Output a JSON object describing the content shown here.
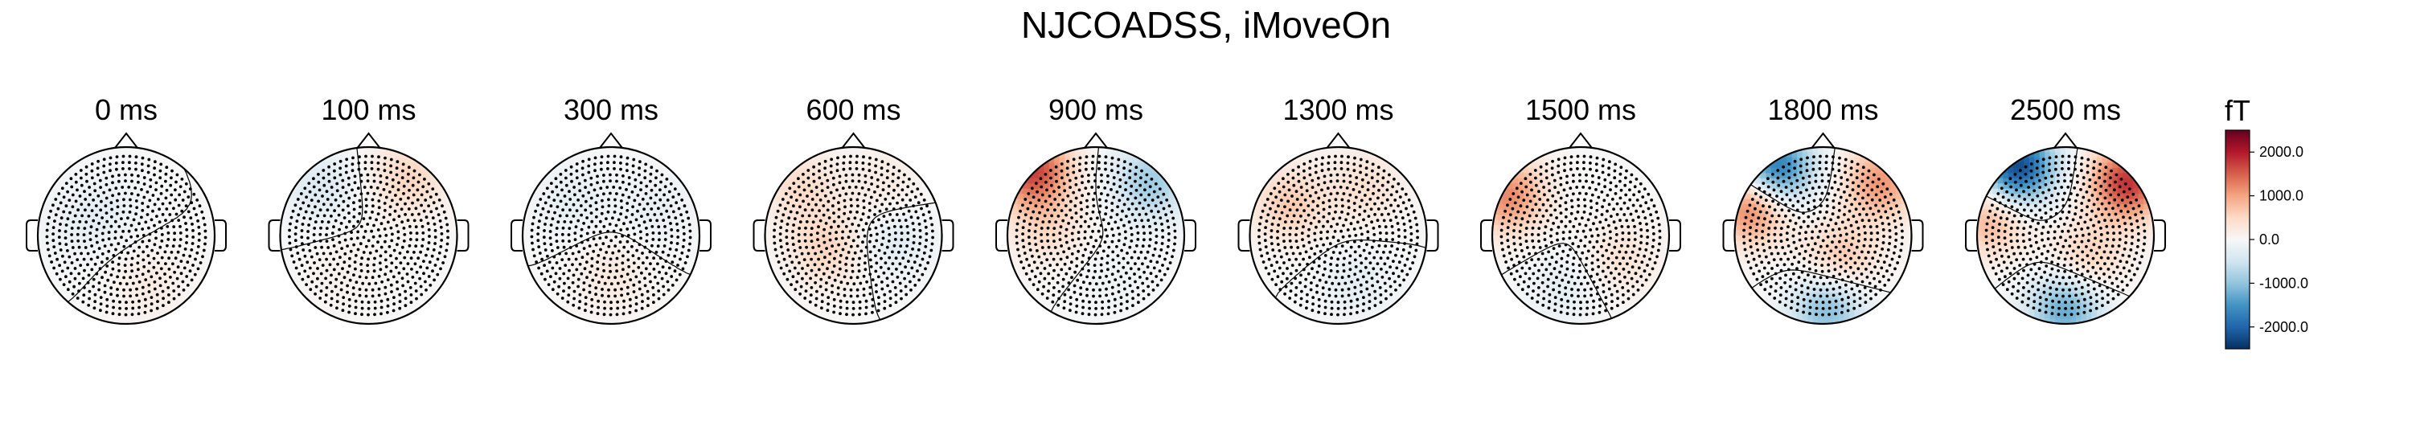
{
  "title": "NJCOADSS, iMoveOn",
  "chart_data": {
    "type": "heatmap",
    "subtype": "topomap",
    "title": "NJCOADSS, iMoveOn",
    "panels": [
      {
        "label": "0 ms",
        "blobs": [
          {
            "x": 0.25,
            "y": 0.55,
            "v": 220
          },
          {
            "x": -0.2,
            "y": -0.3,
            "v": -180
          },
          {
            "x": -0.6,
            "y": -0.1,
            "v": -150
          }
        ]
      },
      {
        "label": "100 ms",
        "blobs": [
          {
            "x": 0.45,
            "y": -0.65,
            "v": 550
          },
          {
            "x": -0.55,
            "y": -0.55,
            "v": -350
          },
          {
            "x": -0.3,
            "y": 0.4,
            "v": 120
          }
        ]
      },
      {
        "label": "300 ms",
        "blobs": [
          {
            "x": 0.0,
            "y": 0.45,
            "v": 260
          },
          {
            "x": -0.45,
            "y": -0.4,
            "v": -230
          },
          {
            "x": 0.5,
            "y": -0.3,
            "v": -200
          }
        ]
      },
      {
        "label": "600 ms",
        "blobs": [
          {
            "x": -0.3,
            "y": 0.15,
            "v": 550
          },
          {
            "x": 0.45,
            "y": 0.05,
            "v": -320
          },
          {
            "x": -0.6,
            "y": -0.55,
            "v": 450
          },
          {
            "x": 0.35,
            "y": -0.55,
            "v": 250
          }
        ]
      },
      {
        "label": "900 ms",
        "blobs": [
          {
            "x": -0.72,
            "y": -0.75,
            "v": 1700
          },
          {
            "x": 0.62,
            "y": -0.6,
            "v": -900
          },
          {
            "x": -0.55,
            "y": -0.1,
            "v": 450
          },
          {
            "x": 0.2,
            "y": 0.5,
            "v": -120
          }
        ]
      },
      {
        "label": "1300 ms",
        "blobs": [
          {
            "x": -0.55,
            "y": -0.35,
            "v": 650
          },
          {
            "x": 0.3,
            "y": -0.55,
            "v": 400
          },
          {
            "x": 0.2,
            "y": 0.55,
            "v": -250
          }
        ]
      },
      {
        "label": "1500 ms",
        "blobs": [
          {
            "x": -0.82,
            "y": -0.45,
            "v": 1200
          },
          {
            "x": 0.45,
            "y": 0.25,
            "v": 350
          },
          {
            "x": -0.2,
            "y": 0.6,
            "v": -250
          }
        ]
      },
      {
        "label": "1800 ms",
        "blobs": [
          {
            "x": -0.55,
            "y": -0.75,
            "v": -2000
          },
          {
            "x": -0.8,
            "y": -0.35,
            "v": 1500
          },
          {
            "x": 0.65,
            "y": -0.6,
            "v": 1100
          },
          {
            "x": 0.05,
            "y": 0.85,
            "v": -1100
          },
          {
            "x": 0.2,
            "y": 0.25,
            "v": 700
          }
        ]
      },
      {
        "label": "2500 ms",
        "blobs": [
          {
            "x": -0.55,
            "y": -0.78,
            "v": -2300
          },
          {
            "x": 0.7,
            "y": -0.6,
            "v": 1800
          },
          {
            "x": -0.85,
            "y": -0.2,
            "v": 900
          },
          {
            "x": 0.0,
            "y": 0.85,
            "v": -1300
          },
          {
            "x": 0.25,
            "y": 0.25,
            "v": 600
          }
        ]
      }
    ],
    "colorbar": {
      "unit": "fT",
      "ticks": [
        2000.0,
        1000.0,
        0.0,
        -1000.0,
        -2000.0
      ],
      "tick_labels": [
        "2000.0",
        "1000.0",
        "0.0",
        "-1000.0",
        "-2000.0"
      ],
      "range": [
        -2500,
        2500
      ],
      "colormap": "RdBu_r",
      "colors": [
        "#053061",
        "#2166ac",
        "#4393c3",
        "#92c5de",
        "#d1e5f0",
        "#f7f7f7",
        "#fddbc7",
        "#f4a582",
        "#d6604d",
        "#b2182b",
        "#67001f"
      ]
    }
  }
}
